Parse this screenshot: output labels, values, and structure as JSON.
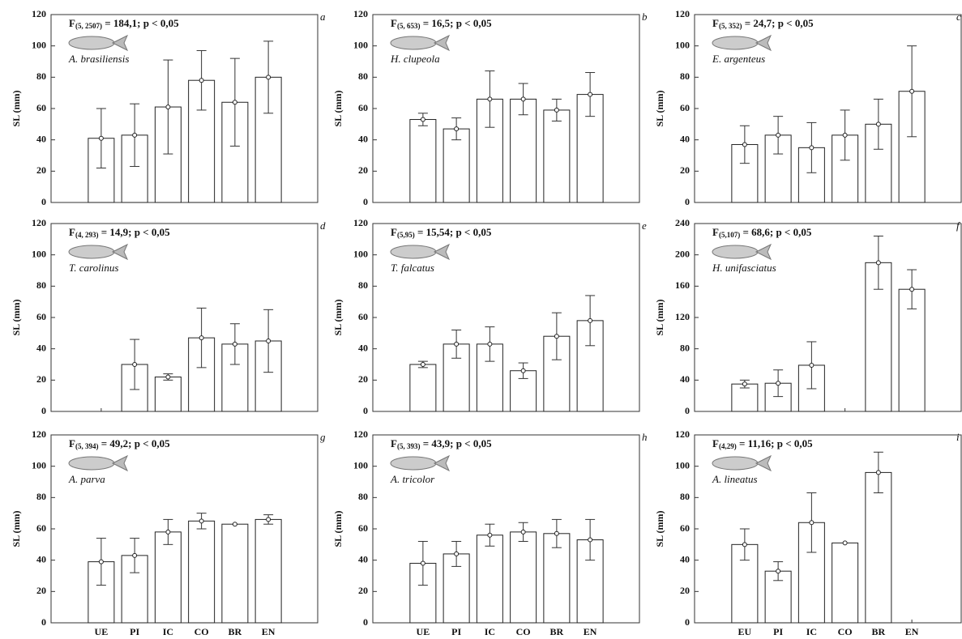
{
  "chart_data": [
    {
      "type": "bar",
      "letter": "a",
      "title": "F",
      "title_subscript": "(5, 2507)",
      "title_rest": " = 184,1; p < 0,05",
      "species": "A. brasiliensis",
      "ylabel": "SL (mm)",
      "categories": [
        null,
        null,
        null,
        null,
        null,
        null
      ],
      "values": [
        41,
        43,
        61,
        78,
        64,
        80
      ],
      "errors": [
        19,
        20,
        30,
        19,
        28,
        23
      ],
      "ylim": [
        0,
        120
      ],
      "yticks": [
        0,
        20,
        40,
        60,
        80,
        100,
        120
      ],
      "color": "#ffffff"
    },
    {
      "type": "bar",
      "letter": "b",
      "title": "F",
      "title_subscript": "(5, 653)",
      "title_rest": " = 16,5; p < 0,05",
      "species": "H. clupeola",
      "ylabel": "SL (mm)",
      "categories": [
        null,
        null,
        null,
        null,
        null,
        null
      ],
      "values": [
        53,
        47,
        66,
        66,
        59,
        69
      ],
      "errors": [
        4,
        7,
        18,
        10,
        7,
        14
      ],
      "ylim": [
        0,
        120
      ],
      "yticks": [
        0,
        20,
        40,
        60,
        80,
        100,
        120
      ],
      "color": "#ffffff"
    },
    {
      "type": "bar",
      "letter": "c",
      "title": "F",
      "title_subscript": "(5, 352)",
      "title_rest": " = 24,7; p < 0,05",
      "species": "E. argenteus",
      "ylabel": "SL (mm)",
      "categories": [
        null,
        null,
        null,
        null,
        null,
        null
      ],
      "values": [
        37,
        43,
        35,
        43,
        50,
        71
      ],
      "errors": [
        12,
        12,
        16,
        16,
        16,
        29
      ],
      "ylim": [
        0,
        120
      ],
      "yticks": [
        0,
        20,
        40,
        60,
        80,
        100,
        120
      ],
      "color": "#ffffff"
    },
    {
      "type": "bar",
      "letter": "d",
      "title": "F",
      "title_subscript": "(4, 293)",
      "title_rest": " = 14,9; p < 0,05",
      "species": "T. carolinus",
      "ylabel": "SL (mm)",
      "categories": [
        null,
        null,
        null,
        null,
        null,
        null
      ],
      "values": [
        null,
        30,
        22,
        47,
        43,
        45
      ],
      "errors": [
        null,
        16,
        2,
        19,
        13,
        20
      ],
      "ylim": [
        0,
        120
      ],
      "yticks": [
        0,
        20,
        40,
        60,
        80,
        100,
        120
      ],
      "color": "#ffffff"
    },
    {
      "type": "bar",
      "letter": "e",
      "title": "F",
      "title_subscript": "(5,95)",
      "title_rest": " = 15,54; p < 0,05",
      "species": "T. falcatus",
      "ylabel": "SL (mm)",
      "categories": [
        null,
        null,
        null,
        null,
        null,
        null
      ],
      "values": [
        30,
        43,
        43,
        26,
        48,
        58
      ],
      "errors": [
        2,
        9,
        11,
        5,
        15,
        16
      ],
      "ylim": [
        0,
        120
      ],
      "yticks": [
        0,
        20,
        40,
        60,
        80,
        100,
        120
      ],
      "color": "#ffffff"
    },
    {
      "type": "bar",
      "letter": "f",
      "title": "F",
      "title_subscript": "(5,107)",
      "title_rest": " = 68,6; p < 0,05",
      "species": "H. unifasciatus",
      "ylabel": "SL (mm)",
      "categories": [
        null,
        null,
        null,
        null,
        null,
        null
      ],
      "values": [
        35,
        36,
        59,
        null,
        190,
        156
      ],
      "errors": [
        5,
        17,
        30,
        null,
        34,
        25
      ],
      "ylim": [
        0,
        240
      ],
      "yticks": [
        0,
        40,
        80,
        120,
        160,
        200,
        240
      ],
      "color": "#ffffff"
    },
    {
      "type": "bar",
      "letter": "g",
      "title": "F",
      "title_subscript": "(5, 394)",
      "title_rest": " = 49,2; p < 0,05",
      "species": "A. parva",
      "ylabel": "SL (mm)",
      "categories": [
        "UE",
        "PI",
        "IC",
        "CO",
        "BR",
        "EN"
      ],
      "values": [
        39,
        43,
        58,
        65,
        63,
        66
      ],
      "errors": [
        15,
        11,
        8,
        5,
        null,
        3
      ],
      "ylim": [
        0,
        120
      ],
      "yticks": [
        0,
        20,
        40,
        60,
        80,
        100,
        120
      ],
      "color": "#ffffff"
    },
    {
      "type": "bar",
      "letter": "h",
      "title": "F",
      "title_subscript": "(5, 393)",
      "title_rest": " = 43,9; p < 0,05",
      "species": "A. tricolor",
      "ylabel": "SL (mm)",
      "categories": [
        "UE",
        "PI",
        "IC",
        "CO",
        "BR",
        "EN"
      ],
      "values": [
        38,
        44,
        56,
        58,
        57,
        53
      ],
      "errors": [
        14,
        8,
        7,
        6,
        9,
        13
      ],
      "ylim": [
        0,
        120
      ],
      "yticks": [
        0,
        20,
        40,
        60,
        80,
        100,
        120
      ],
      "color": "#ffffff"
    },
    {
      "type": "bar",
      "letter": "i",
      "title": "F",
      "title_subscript": "(4,29)",
      "title_rest": " = 11,16; p < 0,05",
      "species": "A. lineatus",
      "ylabel": "SL (mm)",
      "categories": [
        "EU",
        "PI",
        "IC",
        "CO",
        "BR",
        "EN"
      ],
      "values": [
        50,
        33,
        64,
        51,
        96,
        null
      ],
      "errors": [
        10,
        6,
        19,
        null,
        13,
        null
      ],
      "ylim": [
        0,
        120
      ],
      "yticks": [
        0,
        20,
        40,
        60,
        80,
        100,
        120
      ],
      "color": "#ffffff"
    }
  ]
}
